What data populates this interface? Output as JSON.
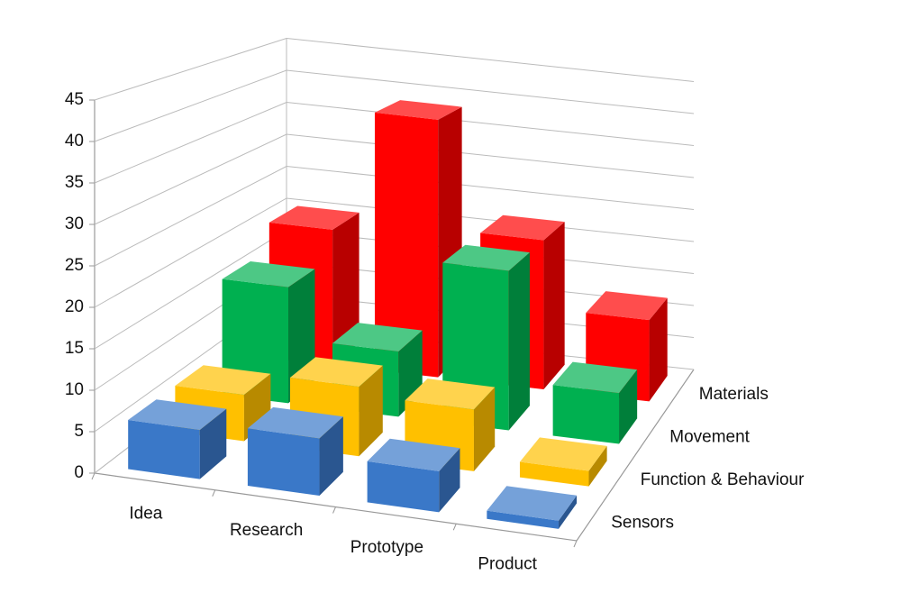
{
  "chart_data": {
    "type": "bar3d",
    "categories": [
      "Idea",
      "Research",
      "Prototype",
      "Product"
    ],
    "series": [
      {
        "name": "Sensors",
        "color": "#3a78c8",
        "values": [
          6,
          7,
          5,
          1
        ]
      },
      {
        "name": "Function & Behaviour",
        "color": "#ffc000",
        "values": [
          6,
          9,
          8,
          2
        ]
      },
      {
        "name": "Movement",
        "color": "#00b050",
        "values": [
          16,
          9,
          22,
          7
        ]
      },
      {
        "name": "Materials",
        "color": "#ff0000",
        "values": [
          20,
          38,
          22,
          12
        ]
      }
    ],
    "ylim": [
      0,
      45
    ],
    "yticks": [
      0,
      5,
      10,
      15,
      20,
      25,
      30,
      35,
      40,
      45
    ],
    "grid": true
  }
}
